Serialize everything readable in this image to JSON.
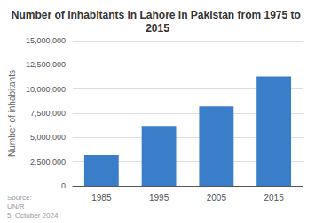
{
  "chart_data": {
    "type": "bar",
    "title": "Number of inhabitants in Lahore in Pakistan from 1975 to 2015",
    "ylabel": "Number of inhabitants",
    "categories": [
      "1985",
      "1995",
      "2005",
      "2015"
    ],
    "values": [
      3200000,
      6200000,
      8200000,
      11300000
    ],
    "color": "#3a7dc9",
    "ylim": [
      0,
      15000000
    ],
    "yticks": [
      0,
      {
        "value": 2500000,
        "label": "2,500,000"
      },
      {
        "value": 5000000,
        "label": "5,000,000"
      },
      {
        "value": 7500000,
        "label": "7,500,000"
      },
      {
        "value": 10000000,
        "label": "10,000,000"
      },
      {
        "value": 12500000,
        "label": "12,500,000"
      },
      {
        "value": 15000000,
        "label": "15,000,000"
      }
    ],
    "grid": true,
    "annotation": "Source:\nUN/R\n5. October 2024"
  }
}
